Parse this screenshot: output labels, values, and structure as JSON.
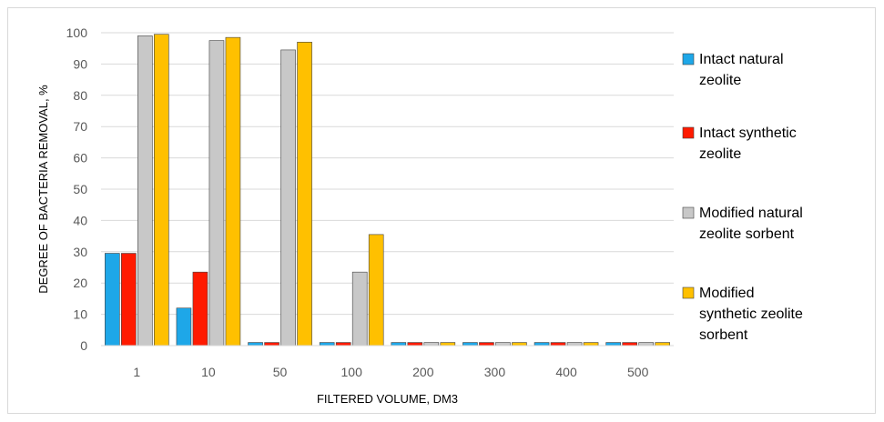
{
  "chart_data": {
    "type": "bar",
    "categories": [
      "1",
      "10",
      "50",
      "100",
      "200",
      "300",
      "400",
      "500"
    ],
    "series": [
      {
        "name": " Intact natural zeolite",
        "legend_lines": [
          " Intact natural",
          "zeolite"
        ],
        "color": "#1ea7e8",
        "values": [
          29.5,
          12,
          1,
          1,
          1,
          1,
          1,
          1
        ]
      },
      {
        "name": "Intact synthetic zeolite",
        "legend_lines": [
          "Intact synthetic",
          "zeolite"
        ],
        "color": "#ff1a00",
        "values": [
          29.5,
          23.5,
          1,
          1,
          1,
          1,
          1,
          1
        ]
      },
      {
        "name": "Modified natural zeolite sorbent",
        "legend_lines": [
          "Modified natural",
          "zeolite sorbent"
        ],
        "color": "#c8c8c8",
        "values": [
          99,
          97.5,
          94.5,
          23.5,
          1,
          1,
          1,
          1
        ]
      },
      {
        "name": "Modified synthetic zeolite sorbent",
        "legend_lines": [
          "Modified",
          "synthetic zeolite",
          "sorbent"
        ],
        "color": "#ffc000",
        "values": [
          99.5,
          98.5,
          97,
          35.5,
          1,
          1,
          1,
          1
        ]
      }
    ],
    "xlabel": "FILTERED VOLUME, DM3",
    "ylabel": "DEGREE OF BACTERIA REMOVAL, %",
    "ylim": [
      0,
      100
    ],
    "yticks": [
      "0",
      "10",
      "20",
      "30",
      "40",
      "50",
      "60",
      "70",
      "80",
      "90",
      "100"
    ],
    "grid": true,
    "legend_position": "right"
  }
}
